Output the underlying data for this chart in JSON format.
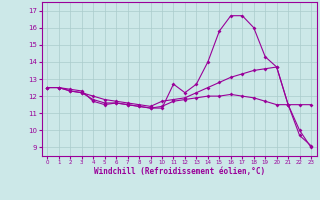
{
  "xlabel": "Windchill (Refroidissement éolien,°C)",
  "bg_color": "#cce8e8",
  "line_color": "#990099",
  "grid_color": "#aacccc",
  "x": [
    0,
    1,
    2,
    3,
    4,
    5,
    6,
    7,
    8,
    9,
    10,
    11,
    12,
    13,
    14,
    15,
    16,
    17,
    18,
    19,
    20,
    21,
    22,
    23
  ],
  "line1": [
    12.5,
    12.5,
    12.4,
    12.3,
    11.7,
    11.5,
    11.6,
    11.5,
    11.4,
    11.3,
    11.3,
    12.7,
    12.2,
    12.7,
    14.0,
    15.8,
    16.7,
    16.7,
    16.0,
    14.3,
    13.7,
    11.5,
    9.7,
    9.1
  ],
  "line2": [
    12.5,
    12.5,
    12.3,
    12.2,
    12.0,
    11.8,
    11.7,
    11.6,
    11.5,
    11.4,
    11.7,
    11.8,
    11.9,
    12.2,
    12.5,
    12.8,
    13.1,
    13.3,
    13.5,
    13.6,
    13.7,
    11.5,
    11.5,
    11.5
  ],
  "line3": [
    12.5,
    12.5,
    12.3,
    12.2,
    11.8,
    11.6,
    11.6,
    11.5,
    11.4,
    11.3,
    11.4,
    11.7,
    11.8,
    11.9,
    12.0,
    12.0,
    12.1,
    12.0,
    11.9,
    11.7,
    11.5,
    11.5,
    10.0,
    9.0
  ],
  "ylim": [
    8.5,
    17.5
  ],
  "yticks": [
    9,
    10,
    11,
    12,
    13,
    14,
    15,
    16,
    17
  ],
  "xticks": [
    0,
    1,
    2,
    3,
    4,
    5,
    6,
    7,
    8,
    9,
    10,
    11,
    12,
    13,
    14,
    15,
    16,
    17,
    18,
    19,
    20,
    21,
    22,
    23
  ]
}
